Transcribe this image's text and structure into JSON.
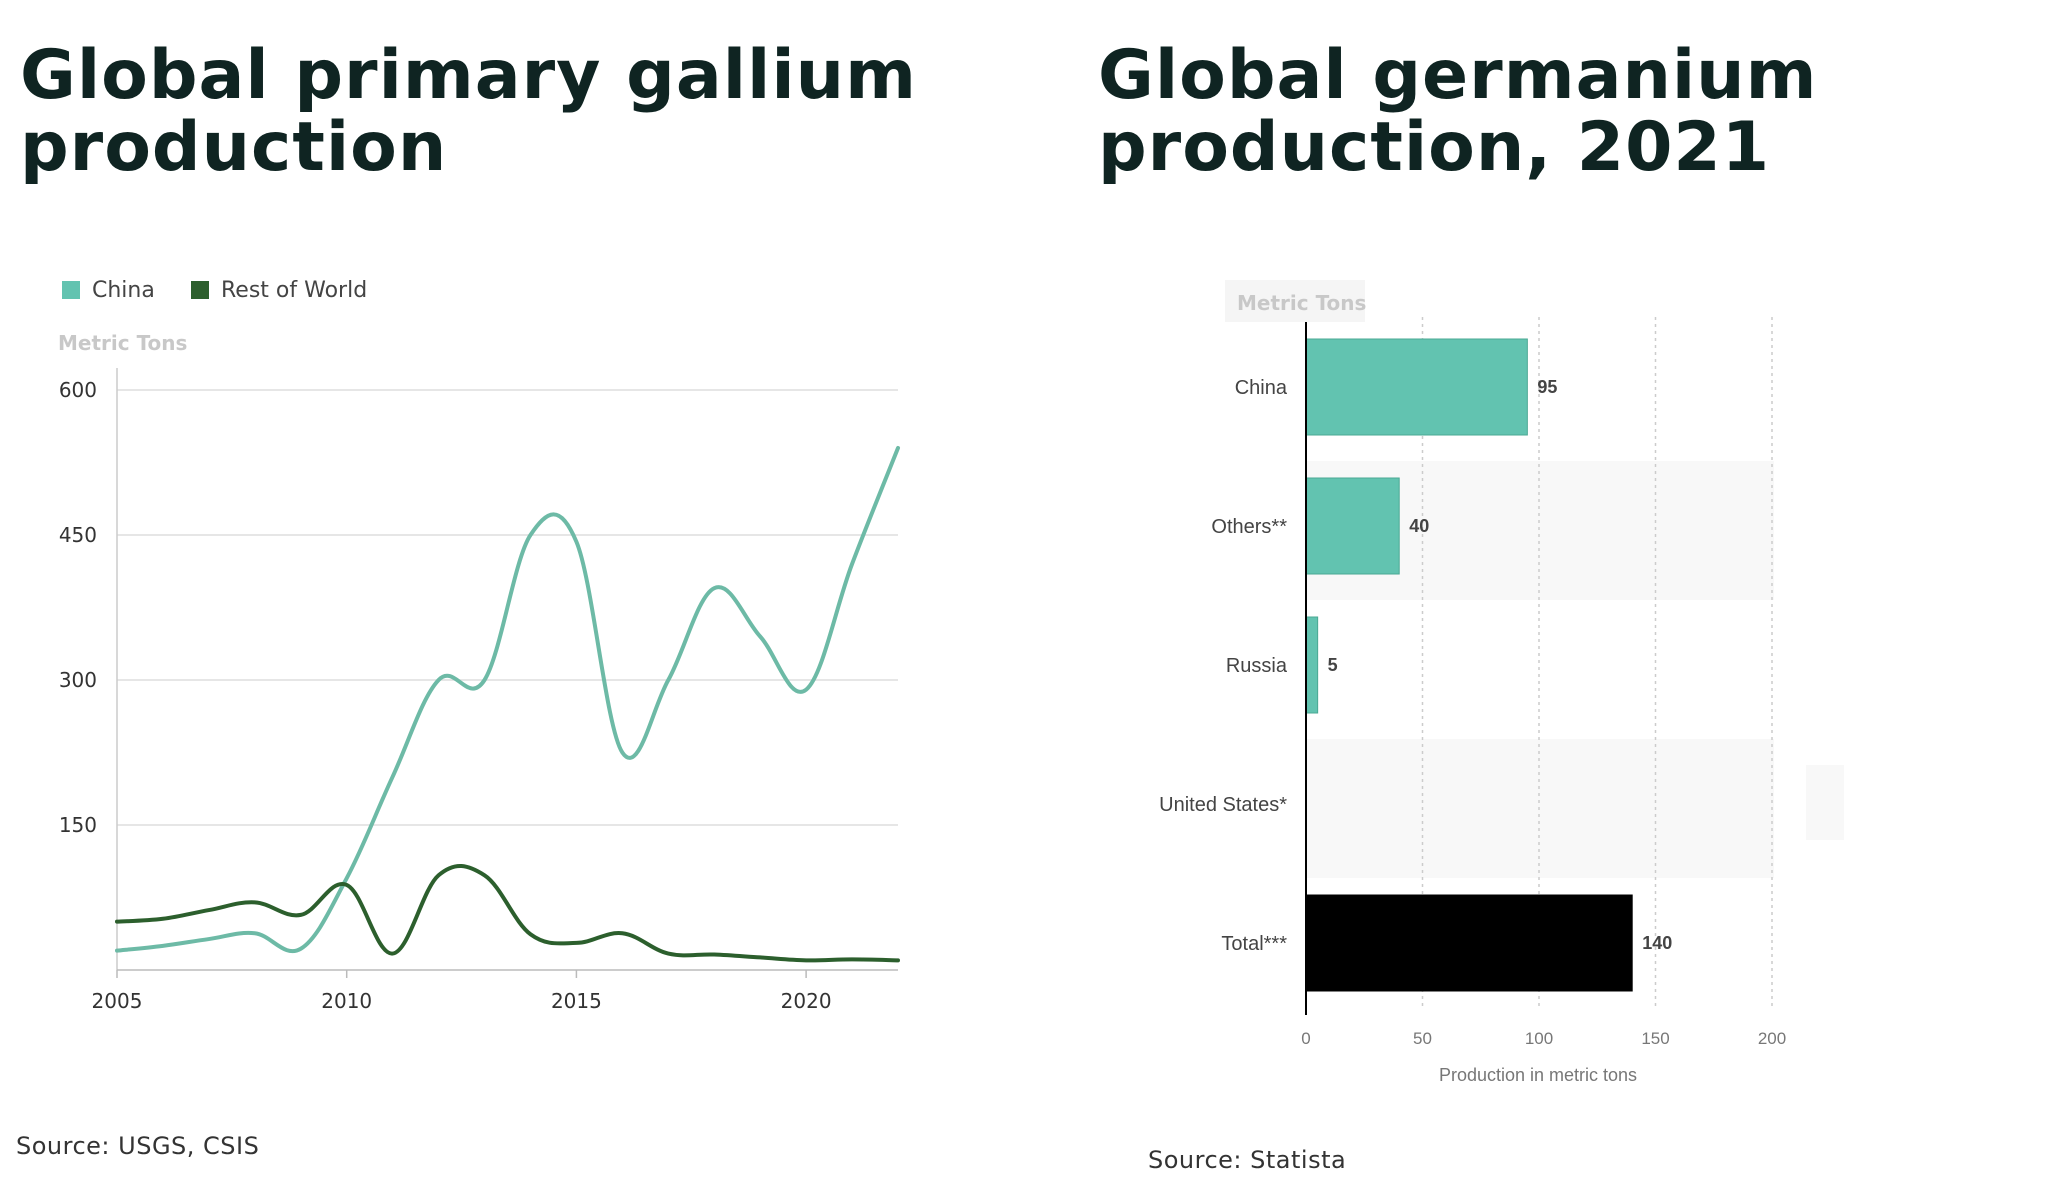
{
  "titles": {
    "left": "Global primary gallium production",
    "right": "Global germanium production, 2021"
  },
  "sources": {
    "left": "Source: USGS, CSIS",
    "right": "Source: Statista"
  },
  "colors": {
    "china": "#62c3b0",
    "china_line": "#6dbaa6",
    "rest_of_world": "#2c5f2d",
    "total": "#000000",
    "title": "#0f2422"
  },
  "chart_data": [
    {
      "type": "line",
      "ylabel": "Metric Tons",
      "ylim": [
        0,
        600
      ],
      "yticks": [
        150,
        300,
        450,
        600
      ],
      "xlim": [
        2005,
        2022
      ],
      "xticks": [
        2005,
        2010,
        2015,
        2020
      ],
      "grid": true,
      "legend": "top-left",
      "x": [
        2005,
        2006,
        2007,
        2008,
        2009,
        2010,
        2011,
        2012,
        2013,
        2014,
        2015,
        2016,
        2017,
        2018,
        2019,
        2020,
        2021,
        2022
      ],
      "series": [
        {
          "name": "China",
          "color": "#6dbaa6",
          "values": [
            20,
            25,
            32,
            38,
            22,
            95,
            200,
            300,
            300,
            450,
            443,
            225,
            300,
            395,
            345,
            290,
            420,
            540
          ]
        },
        {
          "name": "Rest of World",
          "color": "#2c5f2d",
          "values": [
            50,
            53,
            62,
            70,
            57,
            88,
            17,
            98,
            98,
            37,
            28,
            38,
            17,
            16,
            13,
            10,
            11,
            10
          ]
        }
      ]
    },
    {
      "type": "bar",
      "orientation": "horizontal",
      "ylabel": "Metric Tons",
      "xlabel": "Production in metric tons",
      "xlim": [
        0,
        200
      ],
      "xticks": [
        0,
        50,
        100,
        150,
        200
      ],
      "categories": [
        "China",
        "Others**",
        "Russia",
        "United States*",
        "Total***"
      ],
      "values": [
        95,
        40,
        5,
        null,
        140
      ],
      "value_labels": [
        "95",
        "40",
        "5",
        "",
        "140"
      ]
    }
  ]
}
